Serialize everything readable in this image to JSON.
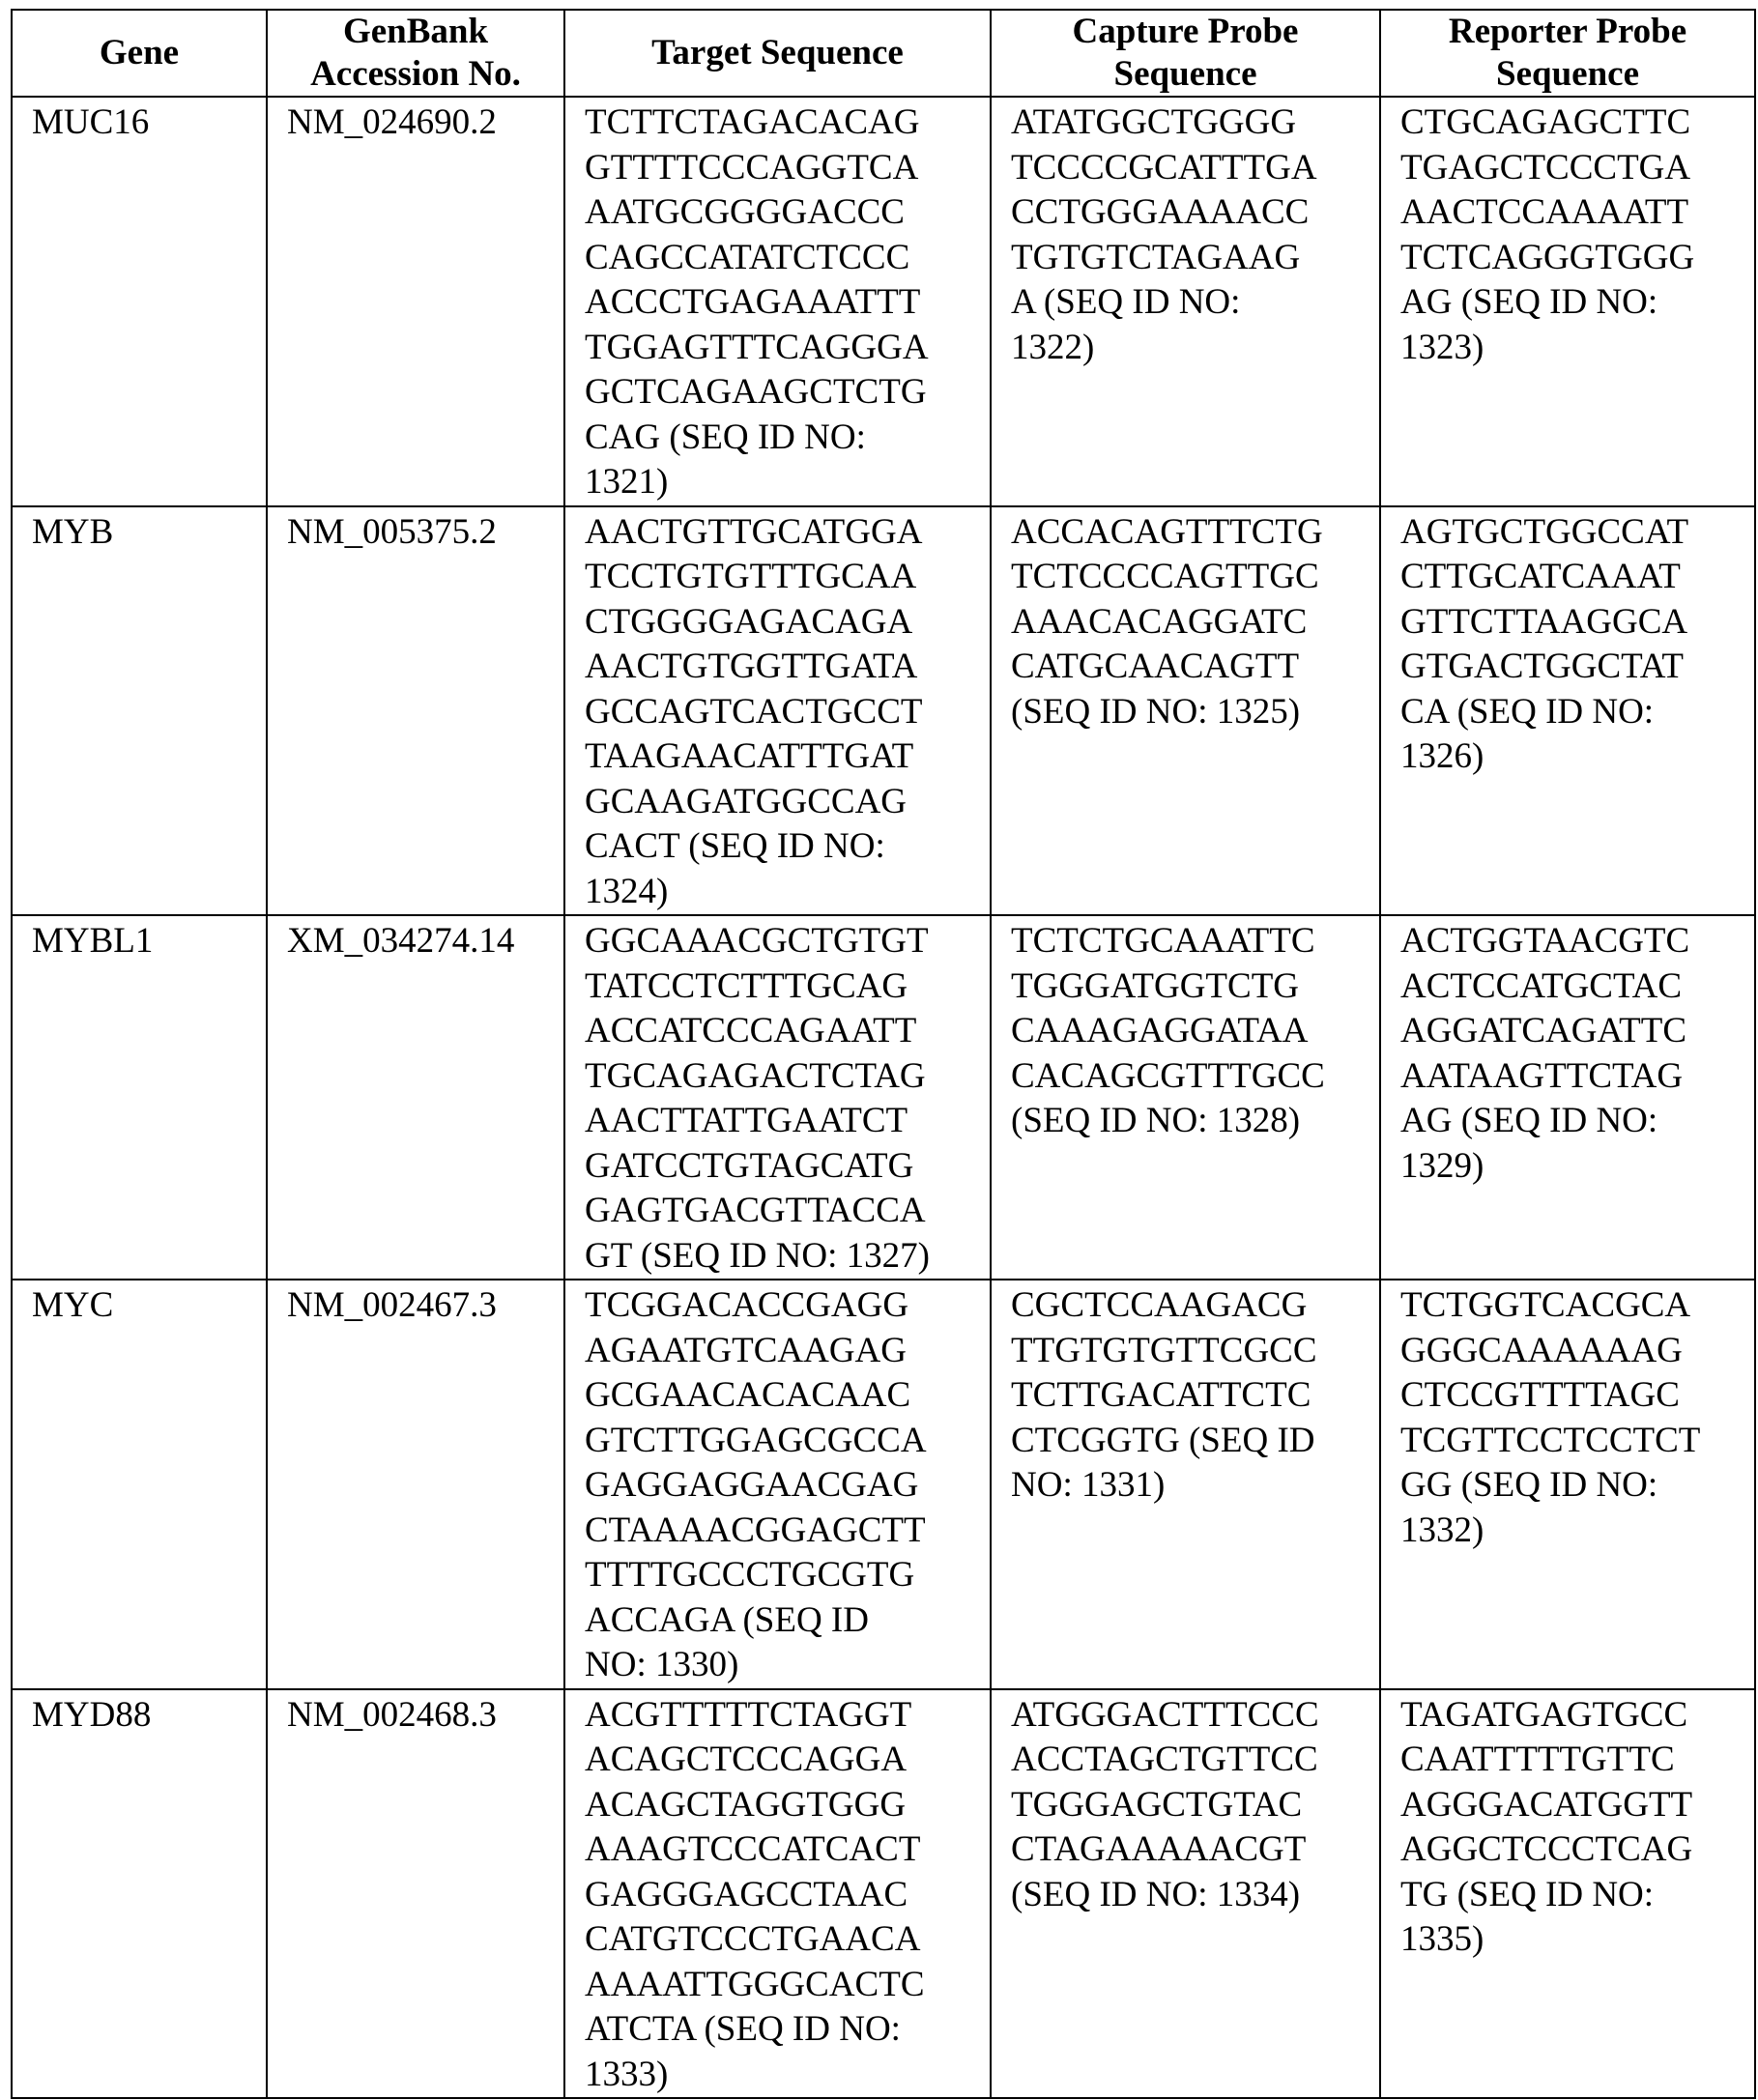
{
  "table": {
    "headers": [
      "Gene",
      "GenBank\nAccession No.",
      "Target Sequence",
      "Capture Probe\nSequence",
      "Reporter Probe\nSequence"
    ],
    "rows": [
      {
        "gene": "MUC16",
        "accession": "NM_024690.2",
        "target": "TCTTCTAGACACAG\nGTTTTCCCAGGTCA\nAATGCGGGGACCC\nCAGCCATATCTCCC\nACCCTGAGAAATTT\nTGGAGTTTCAGGGA\nGCTCAGAAGCTCTG\nCAG (SEQ ID NO:\n1321)",
        "capture": "ATATGGCTGGGG\nTCCCCGCATTTGA\nCCTGGGAAAACC\nTGTGTCTAGAAG\nA (SEQ ID NO:\n1322)",
        "reporter": "CTGCAGAGCTTC\nTGAGCTCCCTGA\nAACTCCAAAATT\nTCTCAGGGTGGG\nAG (SEQ ID NO:\n1323)"
      },
      {
        "gene": "MYB",
        "accession": "NM_005375.2",
        "target": "AACTGTTGCATGGA\nTCCTGTGTTTGCAA\nCTGGGGAGACAGA\nAACTGTGGTTGATA\nGCCAGTCACTGCCT\nTAAGAACATTTGAT\nGCAAGATGGCCAG\nCACT (SEQ ID NO:\n1324)",
        "capture": "ACCACAGTTTCTG\nTCTCCCCAGTTGC\nAAACACAGGATC\nCATGCAACAGTT\n(SEQ ID NO: 1325)",
        "reporter": "AGTGCTGGCCAT\nCTTGCATCAAAT\nGTTCTTAAGGCA\nGTGACTGGCTAT\nCA (SEQ ID NO:\n1326)"
      },
      {
        "gene": "MYBL1",
        "accession": "XM_034274.14",
        "target": "GGCAAACGCTGTGT\nTATCCTCTTTGCAG\nACCATCCCAGAATT\nTGCAGAGACTCTAG\nAACTTATTGAATCT\nGATCCTGTAGCATG\nGAGTGACGTTACCA\nGT (SEQ ID NO: 1327)",
        "capture": "TCTCTGCAAATTC\nTGGGATGGTCTG\nCAAAGAGGATAA\nCACAGCGTTTGCC\n(SEQ ID NO: 1328)",
        "reporter": "ACTGGTAACGTC\nACTCCATGCTAC\nAGGATCAGATTC\nAATAAGTTCTAG\nAG (SEQ ID NO:\n1329)"
      },
      {
        "gene": "MYC",
        "accession": "NM_002467.3",
        "target": "TCGGACACCGAGG\nAGAATGTCAAGAG\nGCGAACACACAAC\nGTCTTGGAGCGCCA\nGAGGAGGAACGAG\nCTAAAACGGAGCTT\nTTTTGCCCTGCGTG\nACCAGA (SEQ ID\nNO: 1330)",
        "capture": "CGCTCCAAGACG\nTTGTGTGTTCGCC\nTCTTGACATTCTC\nCTCGGTG (SEQ ID\nNO: 1331)",
        "reporter": "TCTGGTCACGCA\nGGGCAAAAAAG\nCTCCGTTTTAGC\nTCGTTCCTCCTCT\nGG (SEQ ID NO:\n1332)"
      },
      {
        "gene": "MYD88",
        "accession": "NM_002468.3",
        "target": "ACGTTTTTCTAGGT\nACAGCTCCCAGGA\nACAGCTAGGTGGG\nAAAGTCCCATCACT\nGAGGGAGCCTAAC\nCATGTCCCTGAACA\nAAAATTGGGCACTC\nATCTA (SEQ ID NO:\n1333)",
        "capture": "ATGGGACTTTCCC\nACCTAGCTGTTCC\nTGGGAGCTGTAC\nCTAGAAAAACGT\n(SEQ ID NO: 1334)",
        "reporter": "TAGATGAGTGCC\nCAATTTTTGTTC\nAGGGACATGGTT\nAGGCTCCCTCAG\nTG (SEQ ID NO:\n1335)"
      }
    ]
  }
}
